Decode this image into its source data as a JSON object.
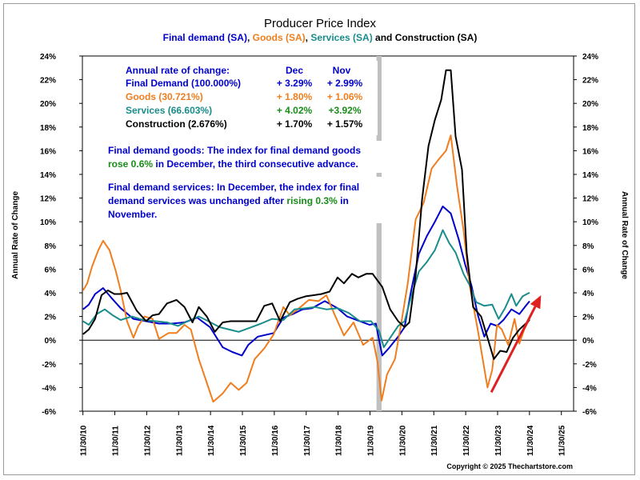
{
  "chart_data": {
    "type": "line",
    "title": "Producer Price Index",
    "subtitle_parts": [
      {
        "text": "Final demand (SA)",
        "color": "#0000cc"
      },
      {
        "text": ", ",
        "color": "#000000"
      },
      {
        "text": "Goods (SA)",
        "color": "#f07d1e"
      },
      {
        "text": ", ",
        "color": "#000000"
      },
      {
        "text": "Services (SA)",
        "color": "#1a8c8c"
      },
      {
        "text": " and Construction (SA)",
        "color": "#000000"
      }
    ],
    "ylabel_left": "Annual Rate of Change",
    "ylabel_right": "Annual Rate of Change",
    "ylim": [
      -6,
      24
    ],
    "yticks": [
      "24%",
      "22%",
      "20%",
      "18%",
      "16%",
      "14%",
      "12%",
      "10%",
      "8%",
      "6%",
      "4%",
      "2%",
      "0%",
      "-2%",
      "-4%",
      "-6%"
    ],
    "xlim": [
      2010.9,
      2026.3
    ],
    "xticks": [
      "11/30/10",
      "11/30/11",
      "11/30/12",
      "11/30/13",
      "11/30/14",
      "11/30/15",
      "11/30/16",
      "11/30/17",
      "11/30/18",
      "11/30/19",
      "11/30/20",
      "11/30/21",
      "11/30/22",
      "11/30/23",
      "11/30/24",
      "11/30/25"
    ],
    "recession_shade": {
      "start": 2020.12,
      "end": 2020.28,
      "color": "#c0c0c0"
    },
    "series": [
      {
        "name": "Final demand",
        "color": "#0000cc",
        "points": [
          [
            2010.92,
            2.6
          ],
          [
            2011.1,
            3.0
          ],
          [
            2011.3,
            3.9
          ],
          [
            2011.55,
            4.4
          ],
          [
            2011.8,
            3.6
          ],
          [
            2012.1,
            2.7
          ],
          [
            2012.5,
            1.8
          ],
          [
            2012.9,
            1.6
          ],
          [
            2013.3,
            1.4
          ],
          [
            2013.7,
            1.4
          ],
          [
            2014.1,
            1.5
          ],
          [
            2014.5,
            1.9
          ],
          [
            2014.9,
            1.1
          ],
          [
            2015.3,
            -0.6
          ],
          [
            2015.6,
            -1.0
          ],
          [
            2015.9,
            -1.3
          ],
          [
            2016.1,
            -0.4
          ],
          [
            2016.4,
            0.3
          ],
          [
            2016.9,
            0.6
          ],
          [
            2017.2,
            1.9
          ],
          [
            2017.5,
            2.2
          ],
          [
            2017.8,
            2.6
          ],
          [
            2018.1,
            2.7
          ],
          [
            2018.5,
            3.3
          ],
          [
            2018.9,
            2.7
          ],
          [
            2019.2,
            2.0
          ],
          [
            2019.6,
            1.6
          ],
          [
            2019.9,
            1.3
          ],
          [
            2020.1,
            1.4
          ],
          [
            2020.3,
            -1.3
          ],
          [
            2020.5,
            -0.7
          ],
          [
            2020.8,
            0.3
          ],
          [
            2021.0,
            1.1
          ],
          [
            2021.2,
            4.1
          ],
          [
            2021.45,
            7.3
          ],
          [
            2021.7,
            8.8
          ],
          [
            2021.95,
            10.0
          ],
          [
            2022.2,
            11.3
          ],
          [
            2022.45,
            10.7
          ],
          [
            2022.7,
            8.5
          ],
          [
            2022.9,
            6.4
          ],
          [
            2023.1,
            4.6
          ],
          [
            2023.3,
            2.1
          ],
          [
            2023.5,
            0.3
          ],
          [
            2023.7,
            1.4
          ],
          [
            2023.9,
            1.2
          ],
          [
            2024.1,
            1.7
          ],
          [
            2024.35,
            2.6
          ],
          [
            2024.6,
            2.2
          ],
          [
            2024.8,
            2.9
          ],
          [
            2024.92,
            3.29
          ]
        ]
      },
      {
        "name": "Goods",
        "color": "#f07d1e",
        "points": [
          [
            2010.92,
            4.2
          ],
          [
            2011.05,
            4.8
          ],
          [
            2011.2,
            6.2
          ],
          [
            2011.4,
            7.6
          ],
          [
            2011.55,
            8.4
          ],
          [
            2011.75,
            7.6
          ],
          [
            2011.95,
            5.8
          ],
          [
            2012.1,
            4.2
          ],
          [
            2012.3,
            1.6
          ],
          [
            2012.5,
            0.2
          ],
          [
            2012.65,
            1.2
          ],
          [
            2012.85,
            2.0
          ],
          [
            2013.1,
            1.8
          ],
          [
            2013.3,
            0.1
          ],
          [
            2013.6,
            0.6
          ],
          [
            2013.85,
            0.6
          ],
          [
            2014.1,
            1.3
          ],
          [
            2014.3,
            0.9
          ],
          [
            2014.55,
            -1.6
          ],
          [
            2014.8,
            -3.6
          ],
          [
            2015.0,
            -5.2
          ],
          [
            2015.3,
            -4.5
          ],
          [
            2015.55,
            -3.6
          ],
          [
            2015.8,
            -4.2
          ],
          [
            2016.05,
            -3.6
          ],
          [
            2016.3,
            -1.6
          ],
          [
            2016.6,
            -0.7
          ],
          [
            2016.9,
            0.5
          ],
          [
            2017.2,
            2.8
          ],
          [
            2017.4,
            2.1
          ],
          [
            2017.65,
            2.6
          ],
          [
            2018.0,
            3.4
          ],
          [
            2018.3,
            3.3
          ],
          [
            2018.55,
            3.8
          ],
          [
            2018.8,
            2.2
          ],
          [
            2019.1,
            0.4
          ],
          [
            2019.4,
            1.5
          ],
          [
            2019.7,
            -0.4
          ],
          [
            2020.0,
            0.2
          ],
          [
            2020.15,
            -1.8
          ],
          [
            2020.28,
            -5.1
          ],
          [
            2020.45,
            -2.9
          ],
          [
            2020.7,
            -1.6
          ],
          [
            2020.9,
            1.5
          ],
          [
            2021.1,
            4.8
          ],
          [
            2021.35,
            10.2
          ],
          [
            2021.6,
            11.6
          ],
          [
            2021.85,
            14.5
          ],
          [
            2022.05,
            15.2
          ],
          [
            2022.3,
            16.0
          ],
          [
            2022.45,
            17.3
          ],
          [
            2022.65,
            12.9
          ],
          [
            2022.85,
            9.3
          ],
          [
            2023.05,
            4.5
          ],
          [
            2023.3,
            0.8
          ],
          [
            2023.45,
            -1.6
          ],
          [
            2023.6,
            -4.0
          ],
          [
            2023.75,
            -2.5
          ],
          [
            2023.9,
            1.3
          ],
          [
            2024.05,
            0.9
          ],
          [
            2024.25,
            -0.4
          ],
          [
            2024.45,
            1.8
          ],
          [
            2024.6,
            -0.3
          ],
          [
            2024.75,
            0.9
          ],
          [
            2024.92,
            1.8
          ]
        ]
      },
      {
        "name": "Services",
        "color": "#1a8c8c",
        "points": [
          [
            2010.92,
            1.6
          ],
          [
            2011.1,
            1.3
          ],
          [
            2011.35,
            2.2
          ],
          [
            2011.6,
            2.6
          ],
          [
            2011.85,
            2.1
          ],
          [
            2012.1,
            1.7
          ],
          [
            2012.45,
            2.0
          ],
          [
            2012.8,
            1.7
          ],
          [
            2013.2,
            1.6
          ],
          [
            2013.55,
            1.5
          ],
          [
            2013.9,
            1.2
          ],
          [
            2014.2,
            1.6
          ],
          [
            2014.55,
            2.0
          ],
          [
            2014.85,
            1.6
          ],
          [
            2015.2,
            1.1
          ],
          [
            2015.5,
            0.9
          ],
          [
            2015.8,
            0.7
          ],
          [
            2016.1,
            1.0
          ],
          [
            2016.5,
            1.4
          ],
          [
            2016.85,
            1.8
          ],
          [
            2017.2,
            1.7
          ],
          [
            2017.55,
            2.6
          ],
          [
            2017.9,
            2.7
          ],
          [
            2018.2,
            2.8
          ],
          [
            2018.55,
            2.6
          ],
          [
            2018.9,
            2.7
          ],
          [
            2019.25,
            2.3
          ],
          [
            2019.6,
            1.6
          ],
          [
            2019.95,
            1.6
          ],
          [
            2020.2,
            0.8
          ],
          [
            2020.35,
            -0.6
          ],
          [
            2020.55,
            0.2
          ],
          [
            2020.8,
            1.2
          ],
          [
            2021.0,
            1.6
          ],
          [
            2021.2,
            3.6
          ],
          [
            2021.45,
            5.8
          ],
          [
            2021.7,
            6.6
          ],
          [
            2021.95,
            7.6
          ],
          [
            2022.2,
            9.3
          ],
          [
            2022.4,
            8.2
          ],
          [
            2022.6,
            7.4
          ],
          [
            2022.85,
            5.6
          ],
          [
            2023.05,
            4.6
          ],
          [
            2023.25,
            3.2
          ],
          [
            2023.5,
            2.9
          ],
          [
            2023.75,
            3.0
          ],
          [
            2023.95,
            1.8
          ],
          [
            2024.15,
            2.7
          ],
          [
            2024.35,
            3.9
          ],
          [
            2024.5,
            2.9
          ],
          [
            2024.7,
            3.7
          ],
          [
            2024.92,
            4.02
          ]
        ]
      },
      {
        "name": "Construction",
        "color": "#000000",
        "points": [
          [
            2010.92,
            0.5
          ],
          [
            2011.1,
            0.9
          ],
          [
            2011.3,
            1.8
          ],
          [
            2011.5,
            3.8
          ],
          [
            2011.7,
            4.2
          ],
          [
            2011.9,
            3.9
          ],
          [
            2012.1,
            3.9
          ],
          [
            2012.3,
            4.0
          ],
          [
            2012.6,
            2.5
          ],
          [
            2012.9,
            1.6
          ],
          [
            2013.1,
            2.1
          ],
          [
            2013.3,
            2.2
          ],
          [
            2013.55,
            3.1
          ],
          [
            2013.85,
            3.4
          ],
          [
            2014.1,
            2.8
          ],
          [
            2014.35,
            1.5
          ],
          [
            2014.55,
            2.8
          ],
          [
            2014.8,
            2.0
          ],
          [
            2015.05,
            0.7
          ],
          [
            2015.3,
            1.5
          ],
          [
            2015.55,
            1.6
          ],
          [
            2015.8,
            1.6
          ],
          [
            2016.05,
            1.6
          ],
          [
            2016.35,
            1.6
          ],
          [
            2016.6,
            2.9
          ],
          [
            2016.85,
            3.1
          ],
          [
            2017.1,
            1.6
          ],
          [
            2017.4,
            3.2
          ],
          [
            2017.65,
            3.5
          ],
          [
            2017.9,
            3.7
          ],
          [
            2018.15,
            3.8
          ],
          [
            2018.4,
            3.9
          ],
          [
            2018.65,
            4.1
          ],
          [
            2018.9,
            5.3
          ],
          [
            2019.1,
            4.8
          ],
          [
            2019.35,
            5.6
          ],
          [
            2019.55,
            5.3
          ],
          [
            2019.8,
            5.6
          ],
          [
            2020.0,
            5.6
          ],
          [
            2020.3,
            4.5
          ],
          [
            2020.55,
            2.6
          ],
          [
            2020.8,
            1.6
          ],
          [
            2021.0,
            1.1
          ],
          [
            2021.15,
            1.5
          ],
          [
            2021.35,
            5.5
          ],
          [
            2021.55,
            11.9
          ],
          [
            2021.75,
            16.4
          ],
          [
            2021.95,
            18.6
          ],
          [
            2022.15,
            20.3
          ],
          [
            2022.3,
            22.8
          ],
          [
            2022.45,
            22.8
          ],
          [
            2022.6,
            17.2
          ],
          [
            2022.8,
            14.4
          ],
          [
            2022.95,
            7.4
          ],
          [
            2023.15,
            2.8
          ],
          [
            2023.4,
            2.0
          ],
          [
            2023.6,
            0.2
          ],
          [
            2023.8,
            -1.6
          ],
          [
            2024.0,
            -0.9
          ],
          [
            2024.2,
            -1.0
          ],
          [
            2024.4,
            0.2
          ],
          [
            2024.6,
            0.9
          ],
          [
            2024.8,
            1.4
          ],
          [
            2024.92,
            1.7
          ]
        ]
      }
    ],
    "rate_table": {
      "header": {
        "label": "Annual rate of change:",
        "col1": "Dec",
        "col2": "Nov"
      },
      "rows": [
        {
          "label": "Final Demand (100.000%)",
          "color": "#0000cc",
          "v1": "+ 3.29%",
          "v2": "+ 2.99%",
          "v1_color": "#0000cc",
          "v2_color": "#0000cc"
        },
        {
          "label": "Goods (30.721%)",
          "color": "#f07d1e",
          "v1": "+ 1.80%",
          "v2": "+ 1.06%",
          "v1_color": "#f07d1e",
          "v2_color": "#f07d1e"
        },
        {
          "label": "Services (66.603%)",
          "color": "#1a8c8c",
          "v1": "+ 4.02%",
          "v2": "+3.92%",
          "v1_color": "#1a8c1a",
          "v2_color": "#1a8c1a"
        },
        {
          "label": "Construction (2.676%)",
          "color": "#000000",
          "v1": "+ 1.70%",
          "v2": "+ 1.57%",
          "v1_color": "#000000",
          "v2_color": "#000000"
        }
      ]
    },
    "annotation_goods": [
      {
        "text": "Final demand goods: The index for final demand goods",
        "color": "#0000cc"
      },
      {
        "text": "rose 0.6%",
        "color": "#1a8c1a",
        "inline": true
      },
      {
        "text": " in December, the third consecutive advance.",
        "color": "#0000cc",
        "inline": true
      }
    ],
    "annotation_services": [
      {
        "text": "Final demand services: In December, the index for final",
        "color": "#0000cc"
      },
      {
        "text": "demand services was unchanged after ",
        "color": "#0000cc"
      },
      {
        "text": "rising 0.3%",
        "color": "#1a8c1a",
        "inline": true
      },
      {
        "text": " in",
        "color": "#0000cc",
        "inline": true
      },
      {
        "text": "November.",
        "color": "#0000cc"
      }
    ],
    "arrow": {
      "from": [
        2023.72,
        -4.4
      ],
      "to": [
        2025.28,
        3.8
      ],
      "color": "#e02020"
    },
    "copyright": "Copyright © 2025 Thechartstore.com"
  }
}
